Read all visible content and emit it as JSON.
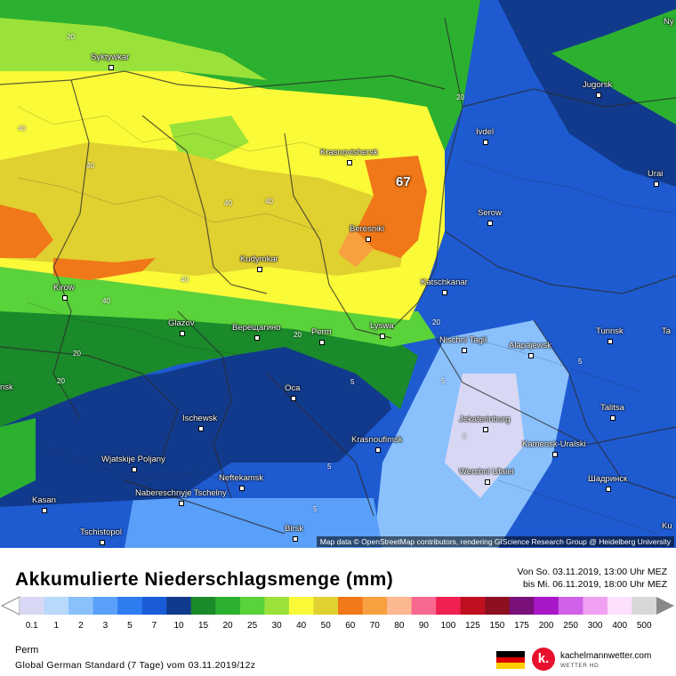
{
  "map": {
    "cities": [
      {
        "name": "Syktywkar",
        "cls": ""
      },
      {
        "name": "Krasnovishersk",
        "cls": ""
      },
      {
        "name": "Beresniki",
        "cls": ""
      },
      {
        "name": "Kudymkar",
        "cls": ""
      },
      {
        "name": "Kirow",
        "cls": ""
      },
      {
        "name": "Glazov",
        "cls": ""
      },
      {
        "name": "Верещагино",
        "cls": ""
      },
      {
        "name": "Perm",
        "cls": ""
      },
      {
        "name": "Lyswa",
        "cls": ""
      },
      {
        "name": "Katschkanar",
        "cls": ""
      },
      {
        "name": "Nischni Tagil",
        "cls": ""
      },
      {
        "name": "Alapajewsk",
        "cls": ""
      },
      {
        "name": "Jugorsk",
        "cls": ""
      },
      {
        "name": "Ivdel",
        "cls": ""
      },
      {
        "name": "Serow",
        "cls": ""
      },
      {
        "name": "Urai",
        "cls": ""
      },
      {
        "name": "Turinsk",
        "cls": ""
      },
      {
        "name": "Jekaterinburg",
        "cls": ""
      },
      {
        "name": "Talitsa",
        "cls": ""
      },
      {
        "name": "Kamensk-Uralski",
        "cls": ""
      },
      {
        "name": "Шадринск",
        "cls": ""
      },
      {
        "name": "Krasnoufimsk",
        "cls": ""
      },
      {
        "name": "Werchni Ufalei",
        "cls": ""
      },
      {
        "name": "Oca",
        "cls": ""
      },
      {
        "name": "Ischewsk",
        "cls": ""
      },
      {
        "name": "Neftekamsk",
        "cls": ""
      },
      {
        "name": "Wjatskije Poljany",
        "cls": ""
      },
      {
        "name": "Nabereschnyje Tschelny",
        "cls": ""
      },
      {
        "name": "Kasan",
        "cls": ""
      },
      {
        "name": "Tschistopol",
        "cls": ""
      },
      {
        "name": "Birsk",
        "cls": ""
      },
      {
        "name": "Ny",
        "cls": "nodot"
      },
      {
        "name": "Ta",
        "cls": "nodot"
      },
      {
        "name": "nsk",
        "cls": "nodot"
      },
      {
        "name": "Ku",
        "cls": "nodot"
      }
    ],
    "isolines": [
      "20",
      "40",
      "40",
      "40",
      "40",
      "40",
      "40",
      "20",
      "20",
      "20",
      "20",
      "20",
      "5",
      "5",
      "5",
      "5",
      "5",
      "5"
    ],
    "max_value": "67",
    "attribution": "Map data © OpenStreetMap contributors, rendering GIScience Research Group @ Heidelberg University"
  },
  "header": {
    "title": "Akkumulierte Niederschlagsmenge (mm)",
    "period_from": "Von So. 03.11.2019, 13:00 Uhr MEZ",
    "period_to": "bis Mi. 06.11.2019, 18:00 Uhr MEZ"
  },
  "legend": {
    "labels": [
      "0.1",
      "1",
      "2",
      "3",
      "5",
      "7",
      "10",
      "15",
      "20",
      "25",
      "30",
      "40",
      "50",
      "60",
      "70",
      "80",
      "90",
      "100",
      "125",
      "150",
      "175",
      "200",
      "250",
      "300",
      "400",
      "500"
    ],
    "colors": [
      "#d8d8f4",
      "#b8d8fc",
      "#8ac0fc",
      "#5aa0fa",
      "#2e7cf0",
      "#1a5cd8",
      "#123a8c",
      "#1a8a2a",
      "#2cb030",
      "#5ad23a",
      "#9ae23a",
      "#fafa38",
      "#e0d030",
      "#f07818",
      "#f8a040",
      "#fcb890",
      "#f86890",
      "#f02050",
      "#c01020",
      "#8c1020",
      "#7a107a",
      "#a818c8",
      "#d060e8",
      "#f0a0f0",
      "#fce0fc",
      "#d8d8d8"
    ]
  },
  "footer": {
    "location": "Perm",
    "model": "Global German Standard (7 Tage) vom 03.11.2019/12z",
    "brand_name": "kachelmannwetter.com",
    "brand_sub": "WETTER HD",
    "brand_letter": "k."
  }
}
